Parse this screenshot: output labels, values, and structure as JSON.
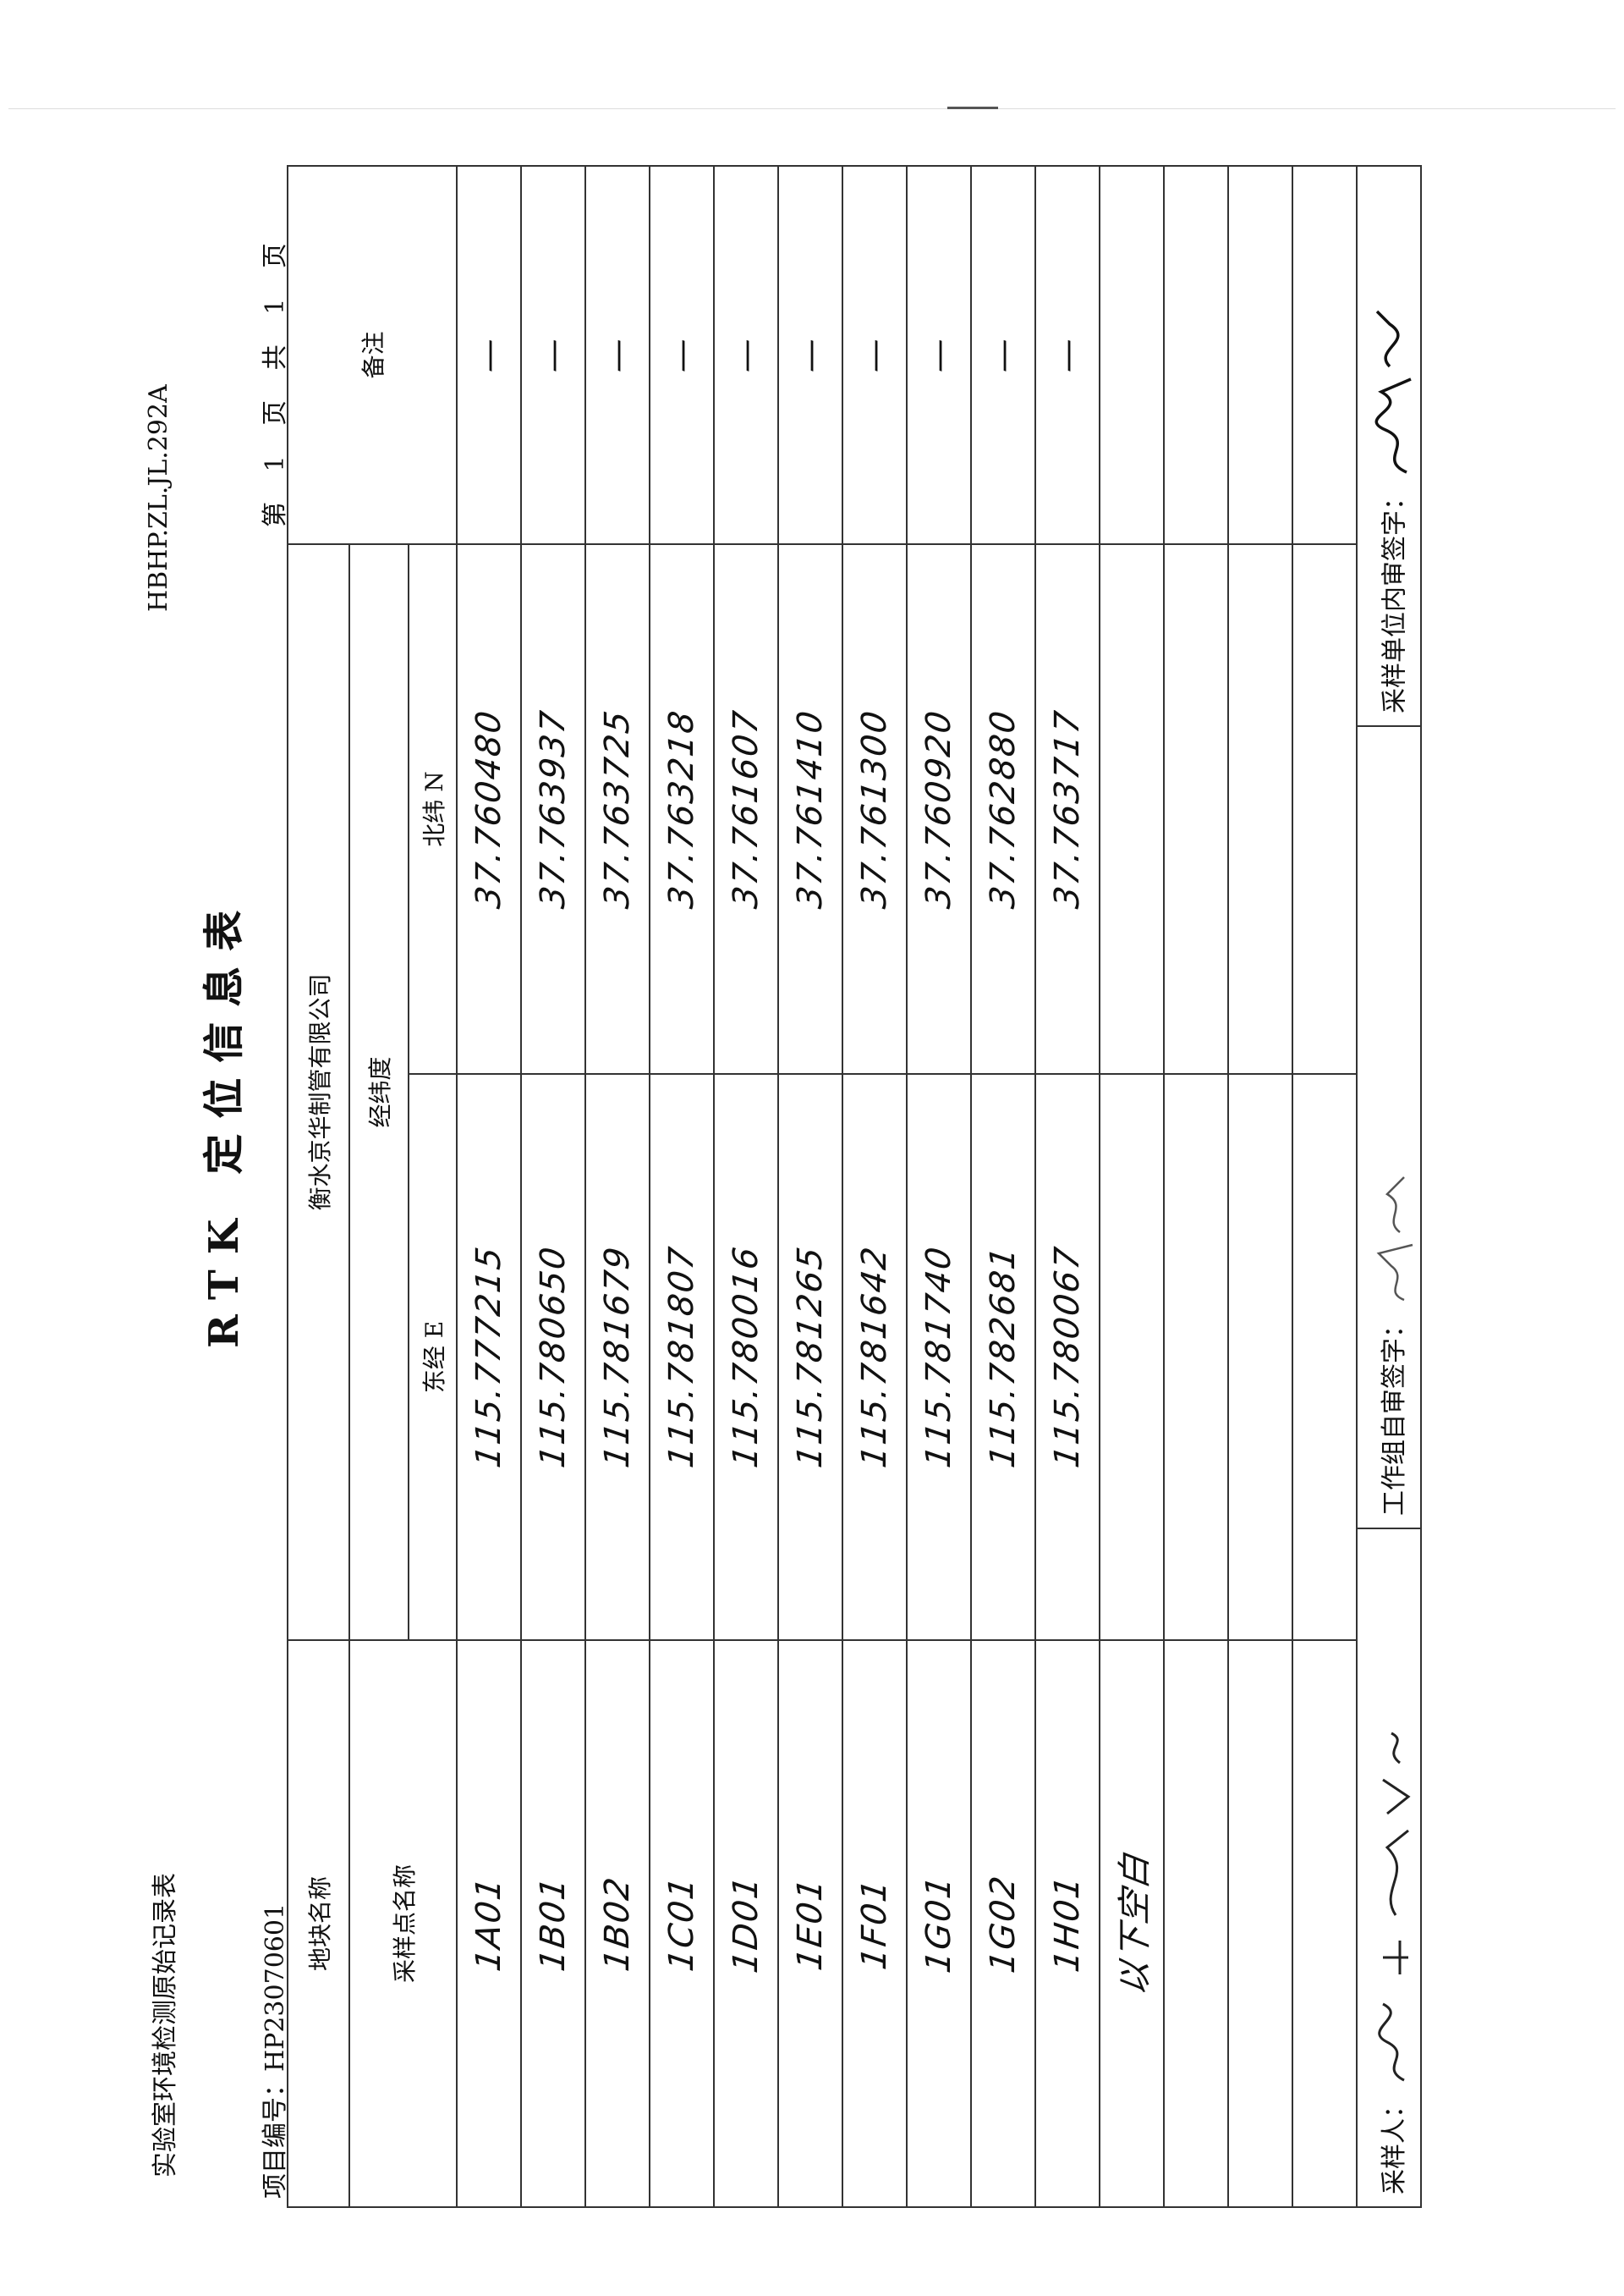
{
  "header": {
    "form_name": "实验室环境检测原始记录表",
    "form_code": "HBHP.ZL.JL.292A",
    "title": "RTK 定位信息表",
    "project_label": "项目编号：",
    "project_no": "HP23070601",
    "page_text": "第 1 页 共 1 页"
  },
  "table": {
    "plot_label": "地块名称",
    "plot_name": "衡水京华制管有限公司",
    "remark_label": "备注",
    "coord_label": "经纬度",
    "sample_label": "采样点名称",
    "east_label": "东经 E",
    "north_label": "北纬 N",
    "rows": [
      {
        "name": "1A01",
        "e": "115.777215",
        "n": "37.760480",
        "remark": "—"
      },
      {
        "name": "1B01",
        "e": "115.780650",
        "n": "37.763937",
        "remark": "—"
      },
      {
        "name": "1B02",
        "e": "115.781679",
        "n": "37.763725",
        "remark": "—"
      },
      {
        "name": "1C01",
        "e": "115.781807",
        "n": "37.763218",
        "remark": "—"
      },
      {
        "name": "1D01",
        "e": "115.780016",
        "n": "37.761607",
        "remark": "—"
      },
      {
        "name": "1E01",
        "e": "115.781265",
        "n": "37.761410",
        "remark": "—"
      },
      {
        "name": "1F01",
        "e": "115.781642",
        "n": "37.761300",
        "remark": "—"
      },
      {
        "name": "1G01",
        "e": "115.781740",
        "n": "37.760920",
        "remark": "—"
      },
      {
        "name": "1G02",
        "e": "115.782681",
        "n": "37.762880",
        "remark": "—"
      },
      {
        "name": "1H01",
        "e": "115.780067",
        "n": "37.763717",
        "remark": "—"
      },
      {
        "name": "以下空白",
        "e": "",
        "n": "",
        "remark": ""
      },
      {
        "name": "",
        "e": "",
        "n": "",
        "remark": ""
      },
      {
        "name": "",
        "e": "",
        "n": "",
        "remark": ""
      },
      {
        "name": "",
        "e": "",
        "n": "",
        "remark": ""
      }
    ]
  },
  "footer": {
    "sampler_label": "采样人：",
    "self_review_label": "工作组自审签字：",
    "internal_review_label": "采样单位内审签字："
  }
}
